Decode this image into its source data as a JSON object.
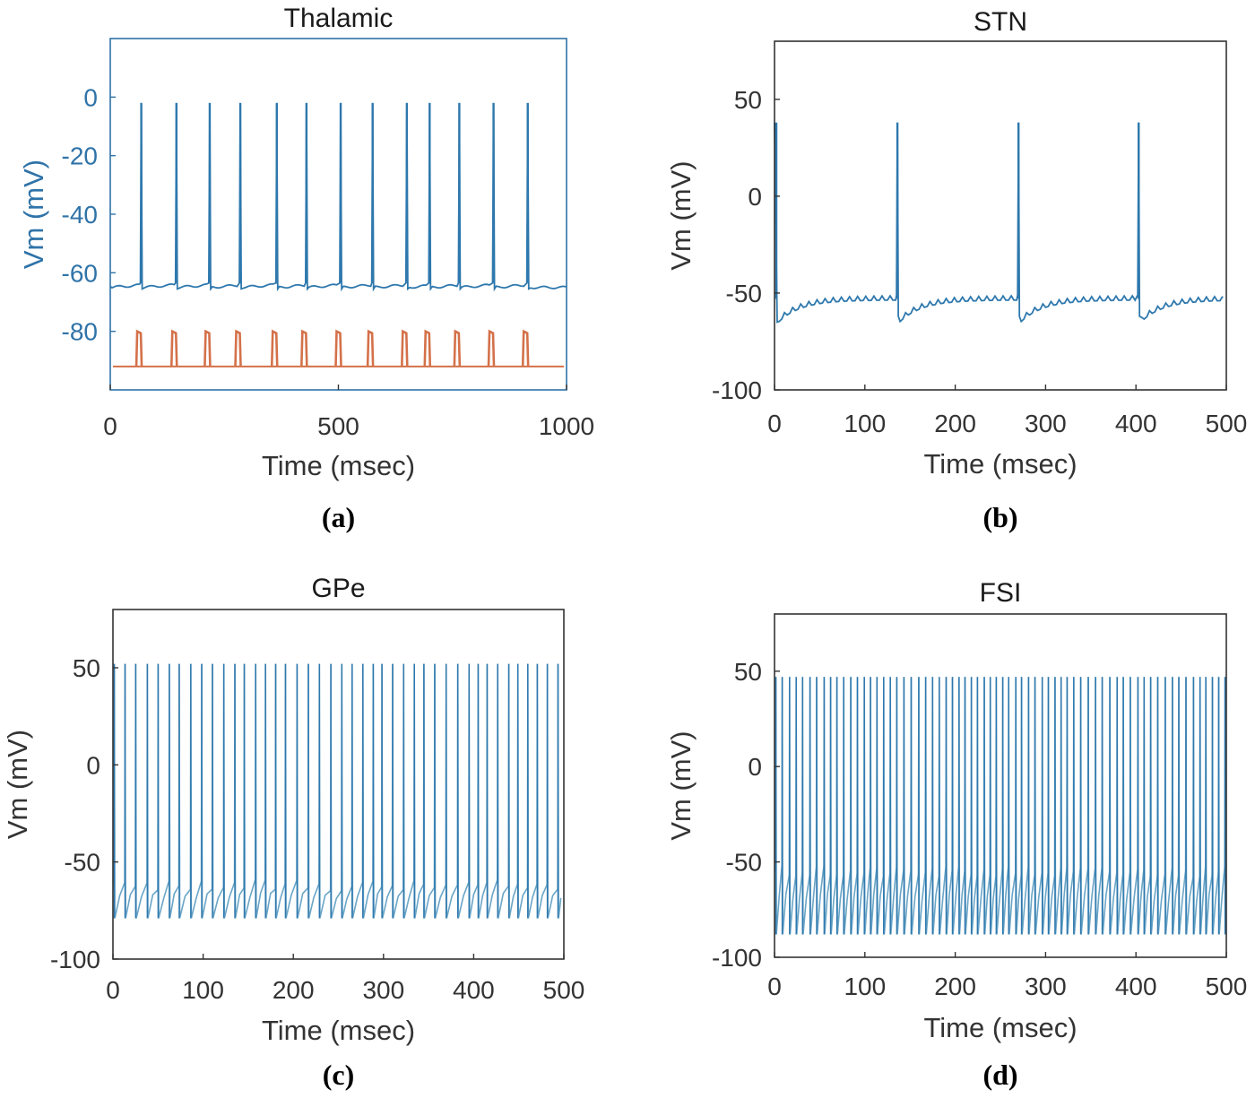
{
  "colors": {
    "trace": "#2e78ad",
    "trace_light": "#6aa5c7",
    "stimulus": "#d4714a",
    "axis_blue": "#2f73a8",
    "axis_gray": "#333333"
  },
  "chart_data": [
    {
      "panel_label": "(a)",
      "type": "line",
      "title": "Thalamic",
      "xlabel": "Time (msec)",
      "ylabel": "Vm (mV)",
      "xlim": [
        0,
        1000
      ],
      "ylim": [
        -100,
        20
      ],
      "xticks": [
        0,
        500,
        1000
      ],
      "xtick_labels": [
        "0",
        "500",
        "1000"
      ],
      "yticks": [
        0,
        -20,
        -40,
        -60,
        -80
      ],
      "ytick_labels": [
        "0",
        "-20",
        "-40",
        "-60",
        "-80"
      ],
      "series": [
        {
          "name": "membrane potential",
          "baseline_mV": -65,
          "spike_peak_mV": -2,
          "spike_times_ms": [
            68,
            145,
            218,
            285,
            365,
            430,
            505,
            575,
            650,
            700,
            765,
            840,
            915
          ]
        },
        {
          "name": "stimulus",
          "baseline_mV": -92,
          "pulse_peak_mV": -80,
          "pulse_times_ms": [
            63,
            140,
            213,
            280,
            360,
            425,
            500,
            570,
            645,
            695,
            760,
            835,
            910
          ]
        }
      ]
    },
    {
      "panel_label": "(b)",
      "type": "line",
      "title": "STN",
      "xlabel": "Time (msec)",
      "ylabel": "Vm (mV)",
      "xlim": [
        0,
        500
      ],
      "ylim": [
        -100,
        80
      ],
      "xticks": [
        0,
        100,
        200,
        300,
        400,
        500
      ],
      "xtick_labels": [
        "0",
        "100",
        "200",
        "300",
        "400",
        "500"
      ],
      "yticks": [
        50,
        0,
        -50,
        -100
      ],
      "ytick_labels": [
        "50",
        "0",
        "-50",
        "-100"
      ],
      "series": [
        {
          "name": "membrane potential",
          "spike_peak_mV": 38,
          "reset_mV": -65,
          "plateau_mV": -53,
          "spike_times_ms": [
            2,
            136,
            270,
            403
          ]
        }
      ]
    },
    {
      "panel_label": "(c)",
      "type": "line",
      "title": "GPe",
      "xlabel": "Time (msec)",
      "ylabel": "Vm (mV)",
      "xlim": [
        0,
        500
      ],
      "ylim": [
        -100,
        80
      ],
      "xticks": [
        0,
        100,
        200,
        300,
        400,
        500
      ],
      "xtick_labels": [
        "0",
        "100",
        "200",
        "300",
        "400",
        "500"
      ],
      "yticks": [
        50,
        0,
        -50,
        -100
      ],
      "ytick_labels": [
        "50",
        "0",
        "-50",
        "-100"
      ],
      "series": [
        {
          "name": "membrane potential",
          "spike_peak_mV": 52,
          "trough_mV": -79,
          "pre_spike_mV": -62,
          "mean_isi_ms": 11.3,
          "spike_count": 44
        }
      ]
    },
    {
      "panel_label": "(d)",
      "type": "line",
      "title": "FSI",
      "xlabel": "Time (msec)",
      "ylabel": "Vm (mV)",
      "xlim": [
        0,
        500
      ],
      "ylim": [
        -100,
        80
      ],
      "xticks": [
        0,
        100,
        200,
        300,
        400,
        500
      ],
      "xtick_labels": [
        "0",
        "100",
        "200",
        "300",
        "400",
        "500"
      ],
      "yticks": [
        50,
        0,
        -50,
        -100
      ],
      "ytick_labels": [
        "50",
        "0",
        "-50",
        "-100"
      ],
      "series": [
        {
          "name": "membrane potential",
          "spike_peak_mV": 47,
          "trough_mV": -88,
          "pre_spike_mV": -55,
          "mean_isi_ms": 7.35,
          "spike_count": 68
        }
      ]
    }
  ]
}
